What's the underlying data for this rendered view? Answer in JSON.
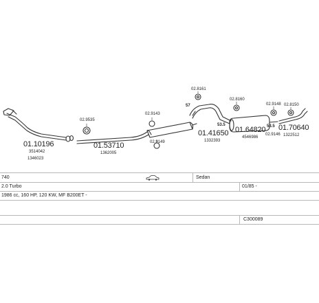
{
  "parts": [
    {
      "id": "part-0110196",
      "number": "01.10196",
      "ref1": "3514042",
      "ref2": "1346023"
    },
    {
      "id": "part-029535",
      "code": "02.9535"
    },
    {
      "id": "part-0153710",
      "number": "01.53710",
      "ref1": "1362005"
    },
    {
      "id": "part-029143",
      "code": "02.9143"
    },
    {
      "id": "part-029149",
      "code": "02.9149"
    },
    {
      "id": "part-028161",
      "code": "02.8161"
    },
    {
      "id": "part-0141650",
      "number": "01.41650",
      "ref1": "1332393"
    },
    {
      "id": "part-028160",
      "code": "02.8160"
    },
    {
      "id": "part-0164820",
      "number": "01.64820",
      "ref1": "4546986"
    },
    {
      "id": "part-029148",
      "code": "02.9148"
    },
    {
      "id": "part-029146",
      "code": "02.9146"
    },
    {
      "id": "part-028150",
      "code": "02.8150"
    },
    {
      "id": "part-0170640",
      "number": "01.70640",
      "ref1": "1322512"
    }
  ],
  "markers": {
    "m1": "57",
    "m2": "53.5",
    "m3": "53.5"
  },
  "info": {
    "model": "740",
    "body": "Sedan",
    "engine": "2.0 Turbo",
    "date": "01/85 -",
    "spec": "1986 cc, 160 HP, 120 KW, MF B200ET -",
    "code": "C300089"
  }
}
